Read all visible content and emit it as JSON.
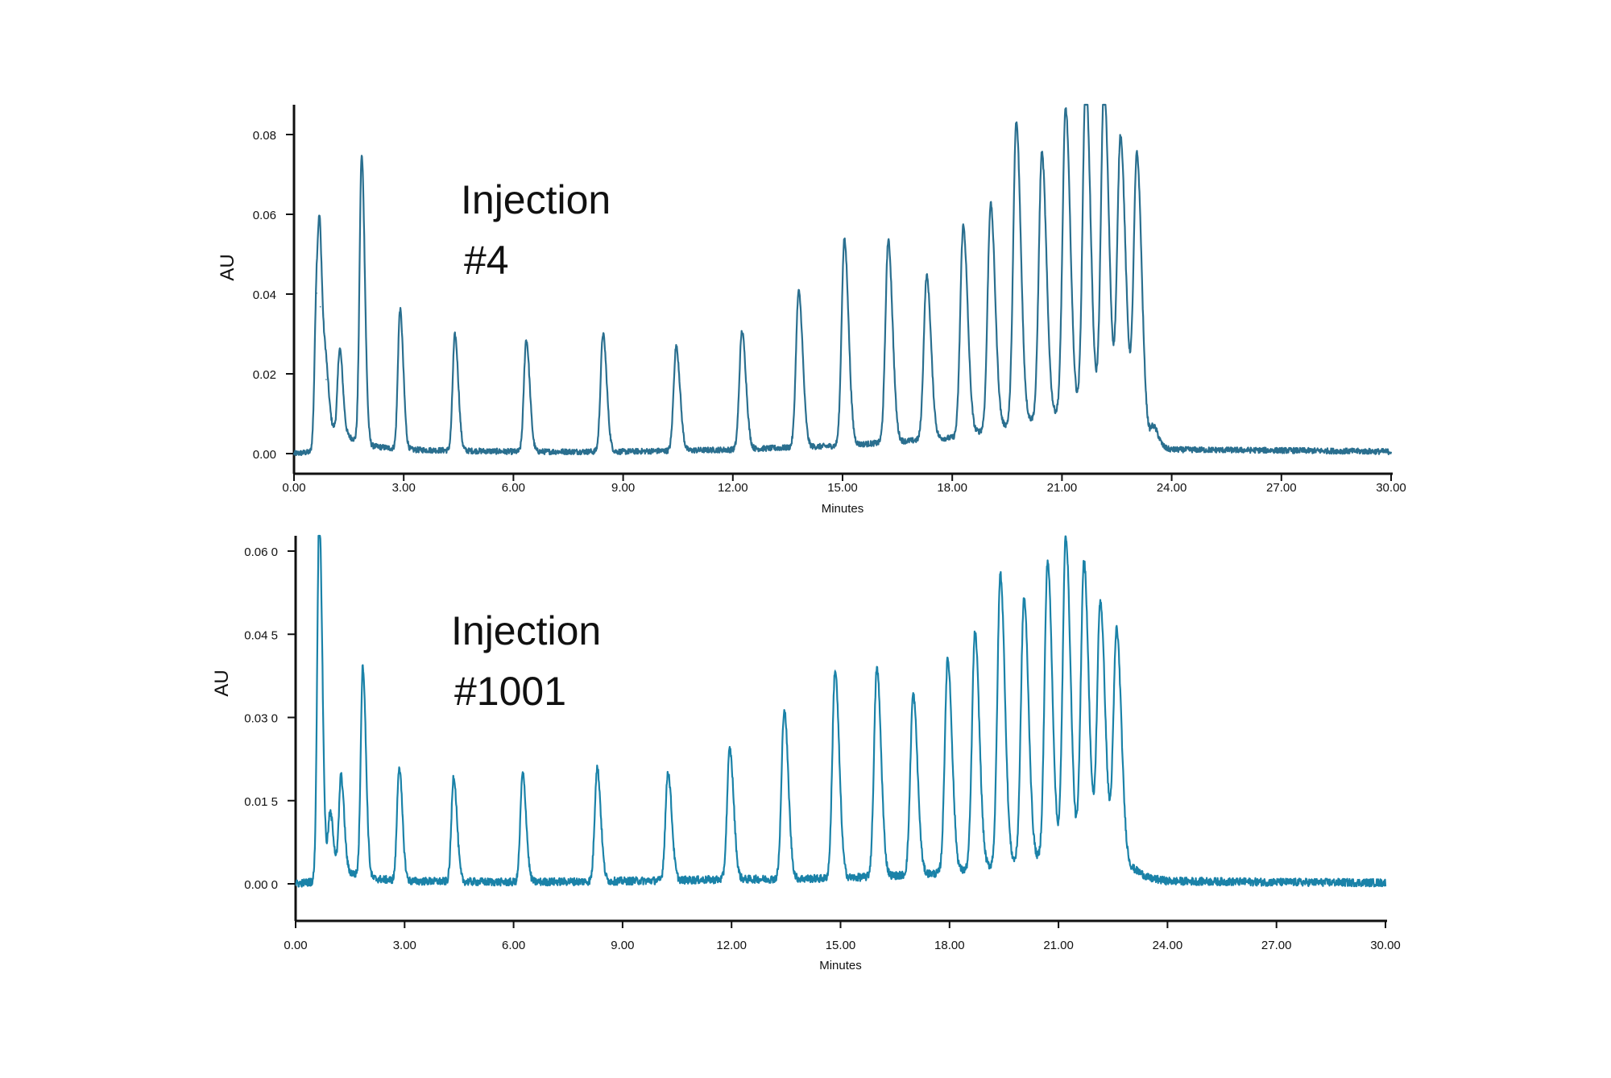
{
  "colors": {
    "background": "#ffffff",
    "axis": "#111111",
    "trace": "#1a82a8",
    "trace_dark": "#2a6f8f",
    "text": "#111111"
  },
  "chart_data": [
    {
      "type": "line",
      "annotation": [
        "Injection",
        "#4"
      ],
      "xlabel": "Minutes",
      "ylabel": "AU",
      "xlim": [
        0,
        30
      ],
      "ylim": [
        -0.005,
        0.088
      ],
      "xticks": [
        0,
        3,
        6,
        9,
        12,
        15,
        18,
        21,
        24,
        27,
        30
      ],
      "xtick_labels": [
        "0.00",
        "3.00",
        "6.00",
        "9.00",
        "12.00",
        "15.00",
        "18.00",
        "21.00",
        "24.00",
        "27.00",
        "30.00"
      ],
      "yticks": [
        0,
        0.02,
        0.04,
        0.06,
        0.08
      ],
      "ytick_labels": [
        "0.00",
        "0.02",
        "0.04",
        "0.06",
        "0.08"
      ],
      "baseline": [
        [
          0,
          0.0
        ],
        [
          0.6,
          0.0005
        ],
        [
          1.1,
          0.006
        ],
        [
          2.0,
          0.002
        ],
        [
          3.0,
          0.001
        ],
        [
          6.0,
          0.0005
        ],
        [
          9.0,
          0.0005
        ],
        [
          12.0,
          0.001
        ],
        [
          15.0,
          0.002
        ],
        [
          18.0,
          0.004
        ],
        [
          19.0,
          0.006
        ],
        [
          20.0,
          0.008
        ],
        [
          21.0,
          0.01
        ],
        [
          22.0,
          0.011
        ],
        [
          22.8,
          0.012
        ],
        [
          23.0,
          0.008
        ],
        [
          23.4,
          0.002
        ],
        [
          24.0,
          0.001
        ],
        [
          27.0,
          0.0008
        ],
        [
          30.0,
          0.0005
        ]
      ],
      "peaks": [
        {
          "rt": 0.62,
          "h": 0.0395
        },
        {
          "rt": 0.72,
          "h": 0.035
        },
        {
          "rt": 0.88,
          "h": 0.015
        },
        {
          "rt": 1.25,
          "h": 0.021
        },
        {
          "rt": 1.85,
          "h": 0.072
        },
        {
          "rt": 2.9,
          "h": 0.035
        },
        {
          "rt": 4.4,
          "h": 0.029
        },
        {
          "rt": 6.35,
          "h": 0.028
        },
        {
          "rt": 8.45,
          "h": 0.0295
        },
        {
          "rt": 10.45,
          "h": 0.026
        },
        {
          "rt": 12.25,
          "h": 0.0295
        },
        {
          "rt": 13.8,
          "h": 0.039
        },
        {
          "rt": 15.05,
          "h": 0.0515
        },
        {
          "rt": 16.25,
          "h": 0.0505
        },
        {
          "rt": 17.3,
          "h": 0.041
        },
        {
          "rt": 18.3,
          "h": 0.0525
        },
        {
          "rt": 19.05,
          "h": 0.0565
        },
        {
          "rt": 19.75,
          "h": 0.0755
        },
        {
          "rt": 20.45,
          "h": 0.0665
        },
        {
          "rt": 21.1,
          "h": 0.0765
        },
        {
          "rt": 21.65,
          "h": 0.083
        },
        {
          "rt": 22.15,
          "h": 0.081
        },
        {
          "rt": 22.6,
          "h": 0.068
        },
        {
          "rt": 23.05,
          "h": 0.068
        },
        {
          "rt": 23.5,
          "h": 0.005
        }
      ]
    },
    {
      "type": "line",
      "annotation": [
        "Injection",
        "#1001"
      ],
      "xlabel": "Minutes",
      "ylabel": "AU",
      "xlim": [
        0,
        30
      ],
      "ylim": [
        -0.007,
        0.0625
      ],
      "xticks": [
        0,
        3,
        6,
        9,
        12,
        15,
        18,
        21,
        24,
        27,
        30
      ],
      "xtick_labels": [
        "0.00",
        "3.00",
        "6.00",
        "9.00",
        "12.00",
        "15.00",
        "18.00",
        "21.00",
        "24.00",
        "27.00",
        "30.00"
      ],
      "yticks": [
        0,
        0.015,
        0.03,
        0.045,
        0.06
      ],
      "ytick_labels": [
        "0.00 0",
        "0.01 5",
        "0.03 0",
        "0.04 5",
        "0.06 0"
      ],
      "baseline": [
        [
          0,
          0.0
        ],
        [
          0.6,
          0.0005
        ],
        [
          1.0,
          0.003
        ],
        [
          2.0,
          0.001
        ],
        [
          3.0,
          0.0005
        ],
        [
          6.0,
          0.0003
        ],
        [
          9.0,
          0.0005
        ],
        [
          12.0,
          0.0008
        ],
        [
          15.0,
          0.001
        ],
        [
          18.0,
          0.002
        ],
        [
          19.0,
          0.003
        ],
        [
          20.0,
          0.004
        ],
        [
          21.0,
          0.005
        ],
        [
          22.0,
          0.006
        ],
        [
          22.6,
          0.006
        ],
        [
          23.0,
          0.003
        ],
        [
          23.5,
          0.001
        ],
        [
          24.0,
          0.0005
        ],
        [
          27.0,
          0.0003
        ],
        [
          30.0,
          0.0002
        ]
      ],
      "peaks": [
        {
          "rt": 0.65,
          "h": 0.066
        },
        {
          "rt": 0.95,
          "h": 0.01
        },
        {
          "rt": 1.25,
          "h": 0.017
        },
        {
          "rt": 1.85,
          "h": 0.038
        },
        {
          "rt": 2.85,
          "h": 0.0205
        },
        {
          "rt": 4.35,
          "h": 0.019
        },
        {
          "rt": 6.25,
          "h": 0.0195
        },
        {
          "rt": 8.3,
          "h": 0.0205
        },
        {
          "rt": 10.25,
          "h": 0.0195
        },
        {
          "rt": 11.95,
          "h": 0.0235
        },
        {
          "rt": 13.45,
          "h": 0.0305
        },
        {
          "rt": 14.85,
          "h": 0.0375
        },
        {
          "rt": 16.0,
          "h": 0.0375
        },
        {
          "rt": 17.0,
          "h": 0.0325
        },
        {
          "rt": 17.95,
          "h": 0.0385
        },
        {
          "rt": 18.7,
          "h": 0.0425
        },
        {
          "rt": 19.4,
          "h": 0.0525
        },
        {
          "rt": 20.05,
          "h": 0.0475
        },
        {
          "rt": 20.7,
          "h": 0.0535
        },
        {
          "rt": 21.2,
          "h": 0.0575
        },
        {
          "rt": 21.7,
          "h": 0.0525
        },
        {
          "rt": 22.15,
          "h": 0.045
        },
        {
          "rt": 22.6,
          "h": 0.04
        }
      ]
    }
  ]
}
